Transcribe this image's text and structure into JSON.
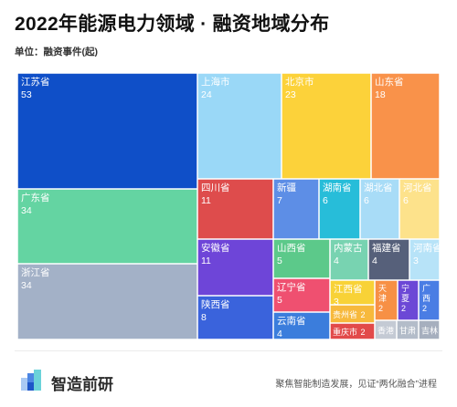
{
  "title": "2022年能源电力领域 · 融资地域分布",
  "unit_label": "单位：融资事件(起)",
  "footer": {
    "brand": "智造前研",
    "slogan": "聚焦智能制造发展，见证“两化融合”进程"
  },
  "chart_data": {
    "type": "treemap",
    "title": "2022年能源电力领域 · 融资地域分布",
    "unit": "单位：融资事件(起)",
    "items": [
      {
        "name": "江苏省",
        "value": 53,
        "color": "#0f4fc8"
      },
      {
        "name": "广东省",
        "value": 34,
        "color": "#64d4a2"
      },
      {
        "name": "浙江省",
        "value": 34,
        "color": "#a3b1c7"
      },
      {
        "name": "上海市",
        "value": 24,
        "color": "#9ad8f7"
      },
      {
        "name": "北京市",
        "value": 23,
        "color": "#fcd23a"
      },
      {
        "name": "山东省",
        "value": 18,
        "color": "#f9924a"
      },
      {
        "name": "四川省",
        "value": 11,
        "color": "#de4c4c"
      },
      {
        "name": "安徽省",
        "value": 11,
        "color": "#6e45d8"
      },
      {
        "name": "陕西省",
        "value": 8,
        "color": "#3a63dc"
      },
      {
        "name": "新疆",
        "value": 7,
        "color": "#5d8ee6"
      },
      {
        "name": "湖南省",
        "value": 6,
        "color": "#27bdd9"
      },
      {
        "name": "湖北省",
        "value": 6,
        "color": "#a8dcf7"
      },
      {
        "name": "河北省",
        "value": 6,
        "color": "#fde28b"
      },
      {
        "name": "山西省",
        "value": 5,
        "color": "#5cc98a"
      },
      {
        "name": "辽宁省",
        "value": 5,
        "color": "#ef5070"
      },
      {
        "name": "云南省",
        "value": 4,
        "color": "#3b7ddc"
      },
      {
        "name": "内蒙古",
        "value": 4,
        "color": "#78d3b1"
      },
      {
        "name": "福建省",
        "value": 4,
        "color": "#56607a"
      },
      {
        "name": "河南省",
        "value": 3,
        "color": "#b7e3f8"
      },
      {
        "name": "江西省",
        "value": 3,
        "color": "#f8d237"
      },
      {
        "name": "天津",
        "value": 2,
        "color": "#f79045"
      },
      {
        "name": "宁夏",
        "value": 2,
        "color": "#6c48d6"
      },
      {
        "name": "广西",
        "value": 2,
        "color": "#4a7de4"
      },
      {
        "name": "贵州省",
        "value": 2,
        "color": "#f7b93c"
      },
      {
        "name": "重庆市",
        "value": 2,
        "color": "#e24a4a"
      },
      {
        "name": "香港",
        "value": 1,
        "color": "#c4cad4"
      },
      {
        "name": "甘肃",
        "value": 1,
        "color": "#b3bcc9"
      },
      {
        "name": "吉林",
        "value": 1,
        "color": "#a6afbe"
      }
    ]
  }
}
